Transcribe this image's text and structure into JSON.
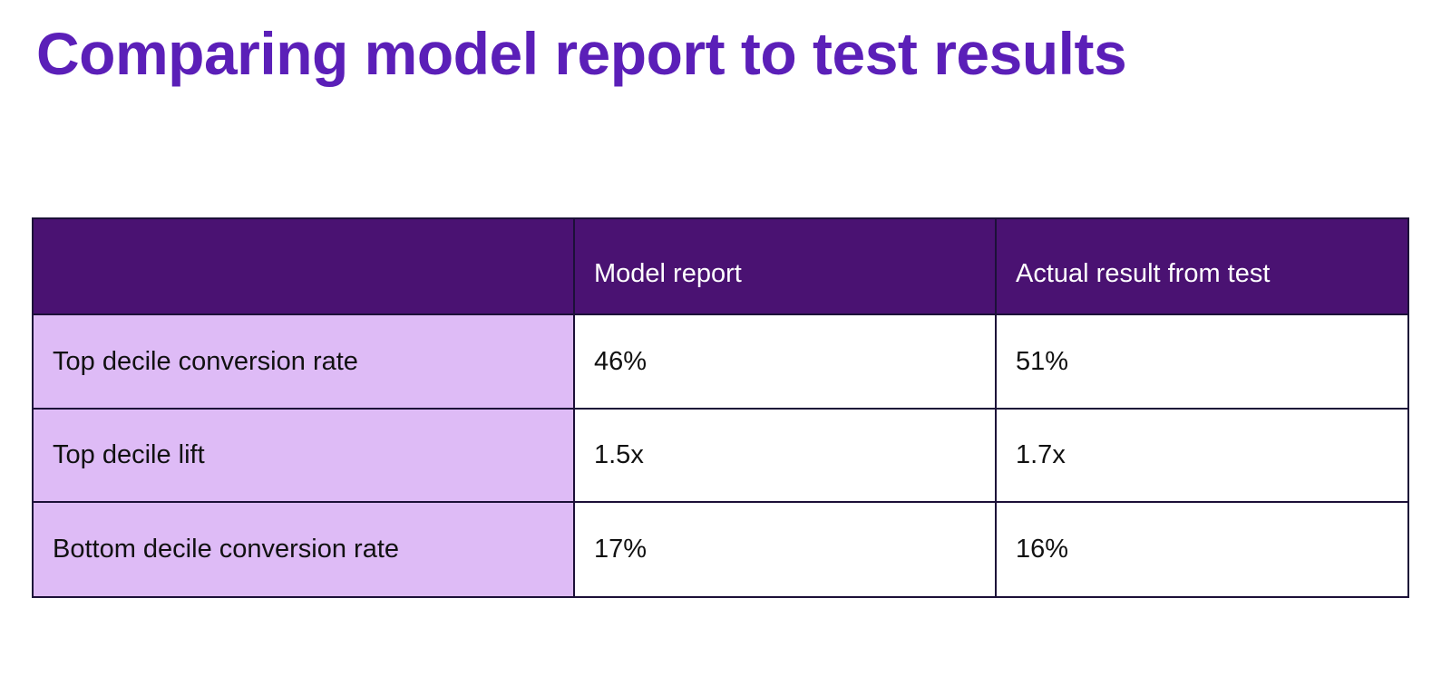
{
  "page": {
    "title": "Comparing model report to test results"
  },
  "theme": {
    "title_color": "#5b1fb8",
    "header_bg": "#4a1272",
    "header_text": "#ffffff",
    "row_label_bg": "#debbf6",
    "cell_bg": "#ffffff",
    "border_color": "#1c1038",
    "text_color": "#111111",
    "background": "#ffffff"
  },
  "table": {
    "columns": [
      "",
      "Model report",
      "Actual result from test"
    ],
    "rows": [
      {
        "label": "Top decile conversion rate",
        "model_report": "46%",
        "actual_result": "51%"
      },
      {
        "label": "Top decile lift",
        "model_report": "1.5x",
        "actual_result": "1.7x"
      },
      {
        "label": "Bottom decile conversion rate",
        "model_report": "17%",
        "actual_result": "16%"
      }
    ]
  },
  "chart_data": {
    "type": "table",
    "title": "Comparing model report to test results",
    "columns": [
      "",
      "Model report",
      "Actual result from test"
    ],
    "rows": [
      [
        "Top decile conversion rate",
        "46%",
        "51%"
      ],
      [
        "Top decile lift",
        "1.5x",
        "1.7x"
      ],
      [
        "Bottom decile conversion rate",
        "17%",
        "16%"
      ]
    ],
    "notes": {
      "top_decile_conversion_rate": {
        "model_report_pct": 46,
        "actual_pct": 51
      },
      "top_decile_lift": {
        "model_report_x": 1.5,
        "actual_x": 1.7
      },
      "bottom_decile_conversion_rate": {
        "model_report_pct": 17,
        "actual_pct": 16
      }
    }
  }
}
